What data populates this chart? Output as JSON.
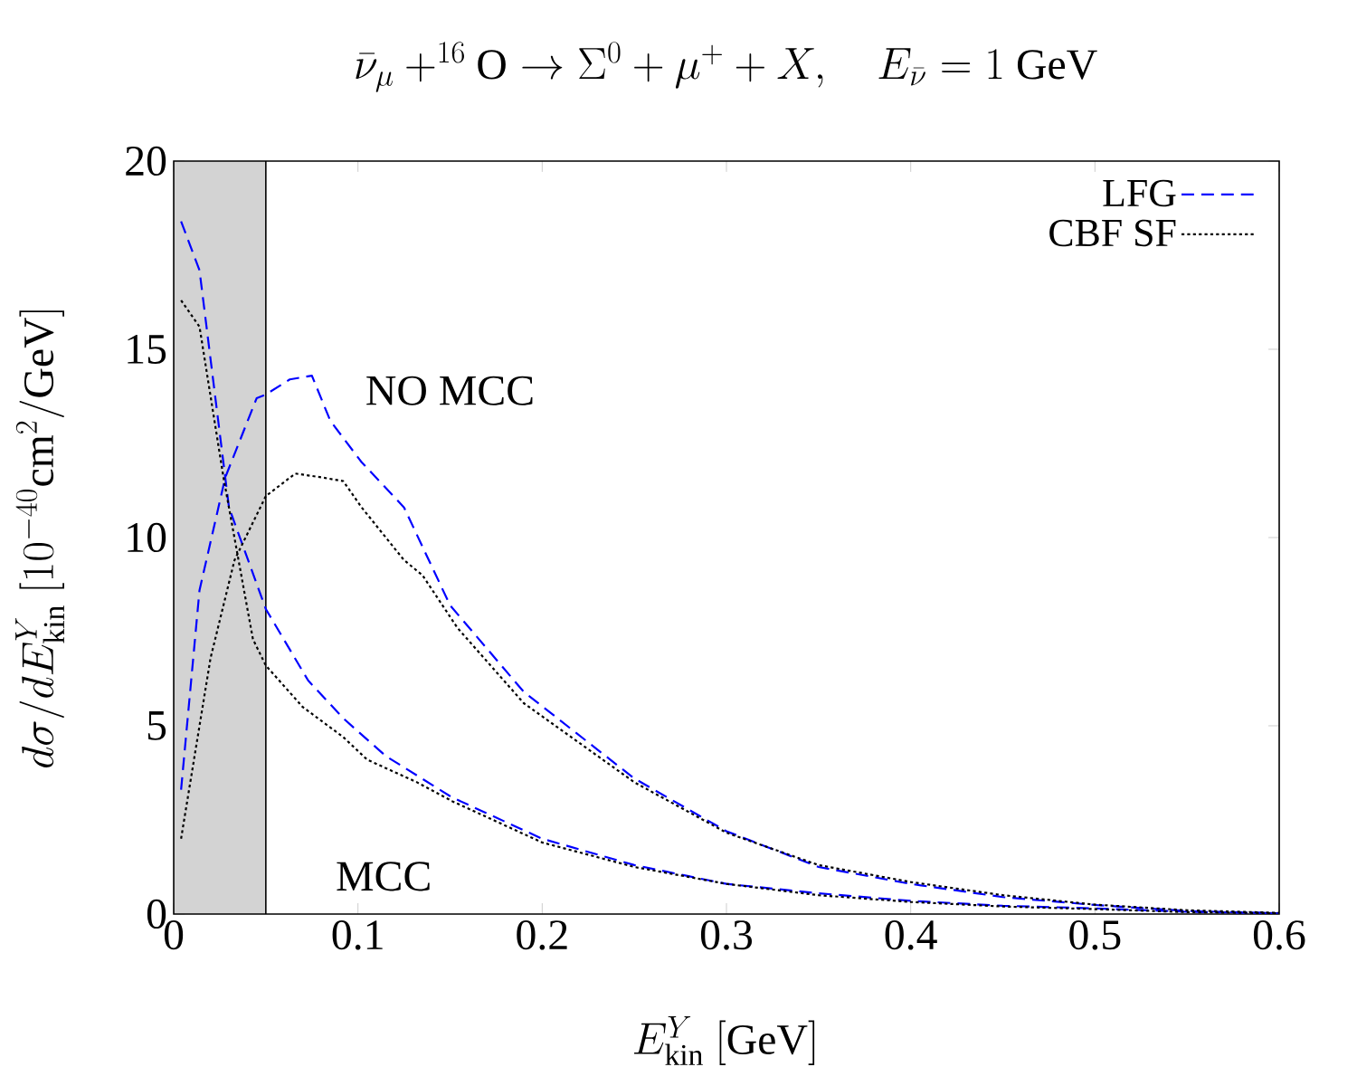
{
  "chart_data": {
    "type": "line",
    "title": "\\bar{\\nu}_\\mu +^{16}\\mathrm{O} \\to \\Sigma^0 + \\mu^+ + X, \\quad E_{\\bar{\\nu}} = 1\\ \\mathrm{GeV}",
    "xlabel": "E^Y_{\\mathrm{kin}}\\ [\\mathrm{GeV}]",
    "ylabel": "d\\sigma/dE^Y_{\\mathrm{kin}}\\ [10^{-40}\\mathrm{cm}^2/\\mathrm{GeV}]",
    "xlim": [
      0,
      0.6
    ],
    "ylim": [
      0,
      20
    ],
    "xticks": [
      0,
      0.1,
      0.2,
      0.3,
      0.4,
      0.5,
      0.6
    ],
    "yticks": [
      0,
      5,
      10,
      15,
      20
    ],
    "legend": "top right",
    "bands": [
      {
        "axis": "x",
        "from": 0,
        "to": 0.05,
        "color": "#d3d3d3"
      }
    ],
    "annotations": [
      "NO MCC",
      "MCC"
    ],
    "series": [
      {
        "name": "LFG",
        "color": "#0000ff",
        "line_style": "dashed",
        "x": [
          0.004,
          0.014,
          0.028,
          0.045,
          0.05,
          0.063,
          0.075,
          0.085,
          0.102,
          0.125,
          0.15,
          0.19,
          0.25,
          0.3,
          0.35,
          0.4,
          0.45,
          0.5,
          0.55,
          0.6
        ],
        "values": [
          3.3,
          8.6,
          11.6,
          13.7,
          13.8,
          14.2,
          14.3,
          13.1,
          12.0,
          10.8,
          8.2,
          5.9,
          3.6,
          2.2,
          1.25,
          0.8,
          0.45,
          0.24,
          0.08,
          0.02
        ]
      },
      {
        "color": "#0000ff",
        "line_style": "dashed",
        "x": [
          0.004,
          0.014,
          0.03,
          0.05,
          0.073,
          0.092,
          0.115,
          0.151,
          0.2,
          0.25,
          0.3,
          0.35,
          0.4,
          0.45,
          0.5,
          0.55,
          0.6
        ],
        "values": [
          18.4,
          17.1,
          10.8,
          8.1,
          6.2,
          5.2,
          4.2,
          3.1,
          2.0,
          1.3,
          0.8,
          0.55,
          0.35,
          0.22,
          0.15,
          0.06,
          0.02
        ]
      },
      {
        "name": "CBF SF",
        "color": "#000000",
        "line_style": "dotted",
        "x": [
          0.004,
          0.02,
          0.033,
          0.05,
          0.066,
          0.08,
          0.092,
          0.102,
          0.125,
          0.135,
          0.154,
          0.19,
          0.25,
          0.3,
          0.35,
          0.4,
          0.45,
          0.5,
          0.55,
          0.6
        ],
        "values": [
          2.0,
          6.8,
          9.4,
          11.1,
          11.7,
          11.6,
          11.5,
          10.8,
          9.4,
          9.0,
          7.6,
          5.6,
          3.5,
          2.16,
          1.3,
          0.85,
          0.5,
          0.25,
          0.1,
          0.03
        ]
      },
      {
        "color": "#000000",
        "line_style": "dotted",
        "x": [
          0.004,
          0.014,
          0.027,
          0.043,
          0.05,
          0.07,
          0.092,
          0.105,
          0.132,
          0.151,
          0.2,
          0.25,
          0.3,
          0.35,
          0.4,
          0.45,
          0.5,
          0.55,
          0.6
        ],
        "values": [
          16.3,
          15.6,
          11.6,
          7.3,
          6.6,
          5.5,
          4.7,
          4.1,
          3.5,
          3.0,
          1.9,
          1.25,
          0.8,
          0.5,
          0.32,
          0.2,
          0.13,
          0.05,
          0.02
        ]
      }
    ]
  }
}
